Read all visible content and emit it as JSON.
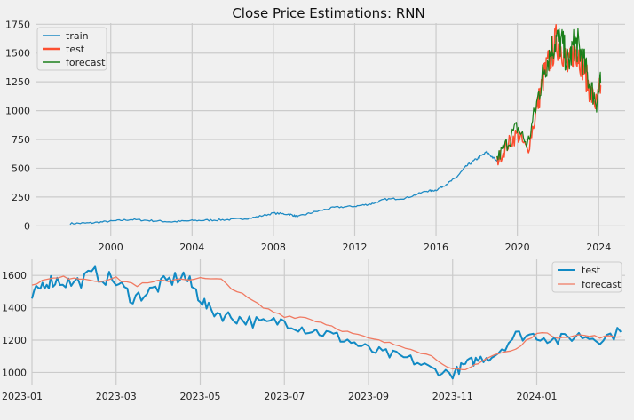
{
  "colors": {
    "train": "#1f8bc4",
    "test": "#fc4f30",
    "forecast": "#1a7f1a",
    "test2": "#118ac4",
    "forecast2": "#f07a62",
    "grid": "#cbcbcb",
    "background": "#f0f0f0"
  },
  "chart_data": [
    {
      "type": "line",
      "title": "Close Price Estimations: RNN",
      "xlabel": "",
      "ylabel": "",
      "xlim": [
        1996.3,
        2025.3
      ],
      "ylim": [
        -90,
        1760
      ],
      "x_ticks": [
        2000,
        2004,
        2008,
        2012,
        2016,
        2020,
        2024
      ],
      "x_tick_labels": [
        "2000",
        "2004",
        "2008",
        "2012",
        "2016",
        "2020",
        "2024"
      ],
      "y_ticks": [
        0,
        250,
        500,
        750,
        1000,
        1250,
        1500,
        1750
      ],
      "y_tick_labels": [
        "0",
        "250",
        "500",
        "750",
        "1000",
        "1250",
        "1500",
        "1750"
      ],
      "legend": {
        "position": "top-left",
        "entries": [
          "train",
          "test",
          "forecast"
        ]
      },
      "series": [
        {
          "name": "train",
          "x": [
            1998.0,
            1999.0,
            2000.0,
            2001.0,
            2002.0,
            2003.0,
            2004.0,
            2005.0,
            2006.0,
            2007.0,
            2008.0,
            2008.8,
            2009.2,
            2010.0,
            2011.0,
            2012.0,
            2012.8,
            2013.5,
            2014.5,
            2015.5,
            2016.0,
            2016.5,
            2017.0,
            2017.5,
            2018.0,
            2018.5,
            2019.0
          ],
          "values": [
            20,
            25,
            40,
            55,
            45,
            35,
            45,
            50,
            55,
            70,
            110,
            100,
            80,
            120,
            160,
            170,
            190,
            230,
            240,
            300,
            310,
            360,
            420,
            520,
            580,
            640,
            560
          ]
        },
        {
          "name": "test",
          "x": [
            2019.0,
            2019.5,
            2020.0,
            2020.5,
            2021.0,
            2021.3,
            2021.6,
            2021.9,
            2022.2,
            2022.5,
            2022.8,
            2023.0,
            2023.3,
            2023.6,
            2023.9,
            2024.1
          ],
          "values": [
            560,
            700,
            800,
            650,
            1050,
            1300,
            1450,
            1600,
            1550,
            1350,
            1550,
            1500,
            1350,
            1150,
            1050,
            1220
          ]
        },
        {
          "name": "forecast",
          "x": [
            2019.0,
            2019.5,
            2020.0,
            2020.5,
            2021.0,
            2021.3,
            2021.6,
            2021.9,
            2022.2,
            2022.5,
            2022.8,
            2023.0,
            2023.3,
            2023.6,
            2023.9,
            2024.1
          ],
          "values": [
            580,
            720,
            860,
            700,
            1100,
            1350,
            1500,
            1620,
            1580,
            1400,
            1580,
            1560,
            1400,
            1200,
            1080,
            1240
          ]
        }
      ]
    },
    {
      "type": "line",
      "title": "",
      "xlabel": "",
      "ylabel": "",
      "xlim": [
        0,
        14.1
      ],
      "ylim": [
        920,
        1700
      ],
      "x_ticks": [
        0,
        2,
        4,
        6,
        8,
        10,
        12
      ],
      "x_tick_labels": [
        "2023-01",
        "2023-03",
        "2023-05",
        "2023-07",
        "2023-09",
        "2023-11",
        "2024-01"
      ],
      "y_ticks": [
        1000,
        1200,
        1400,
        1600
      ],
      "y_tick_labels": [
        "1000",
        "1200",
        "1400",
        "1600"
      ],
      "legend": {
        "position": "top-right",
        "entries": [
          "test",
          "forecast"
        ]
      },
      "series": [
        {
          "name": "test",
          "x": [
            0.0,
            0.3,
            0.6,
            1.0,
            1.5,
            2.0,
            2.4,
            2.8,
            3.2,
            3.6,
            3.9,
            4.2,
            4.6,
            5.0,
            5.5,
            6.0,
            6.5,
            7.0,
            7.5,
            8.0,
            8.5,
            9.0,
            9.5,
            10.0,
            10.3,
            10.6,
            11.0,
            11.5,
            12.0,
            12.5,
            13.0,
            13.5,
            14.0
          ],
          "values": [
            1460,
            1560,
            1570,
            1550,
            1610,
            1560,
            1460,
            1500,
            1560,
            1600,
            1500,
            1390,
            1350,
            1330,
            1300,
            1320,
            1270,
            1240,
            1200,
            1140,
            1110,
            1080,
            1020,
            990,
            1050,
            1080,
            1110,
            1230,
            1230,
            1200,
            1230,
            1210,
            1250
          ]
        },
        {
          "name": "forecast",
          "x": [
            0.0,
            0.5,
            1.0,
            1.5,
            2.0,
            2.5,
            3.0,
            3.5,
            4.0,
            4.5,
            5.0,
            5.5,
            6.0,
            6.5,
            7.0,
            7.5,
            8.0,
            8.5,
            9.0,
            9.5,
            10.0,
            10.3,
            10.6,
            11.0,
            11.5,
            12.0,
            12.5,
            13.0,
            13.5,
            14.0
          ],
          "values": [
            1550,
            1580,
            1590,
            1570,
            1580,
            1540,
            1560,
            1580,
            1580,
            1570,
            1480,
            1400,
            1350,
            1340,
            1300,
            1250,
            1210,
            1180,
            1150,
            1100,
            1020,
            1010,
            1060,
            1110,
            1140,
            1250,
            1220,
            1230,
            1220,
            1220
          ]
        }
      ]
    }
  ]
}
